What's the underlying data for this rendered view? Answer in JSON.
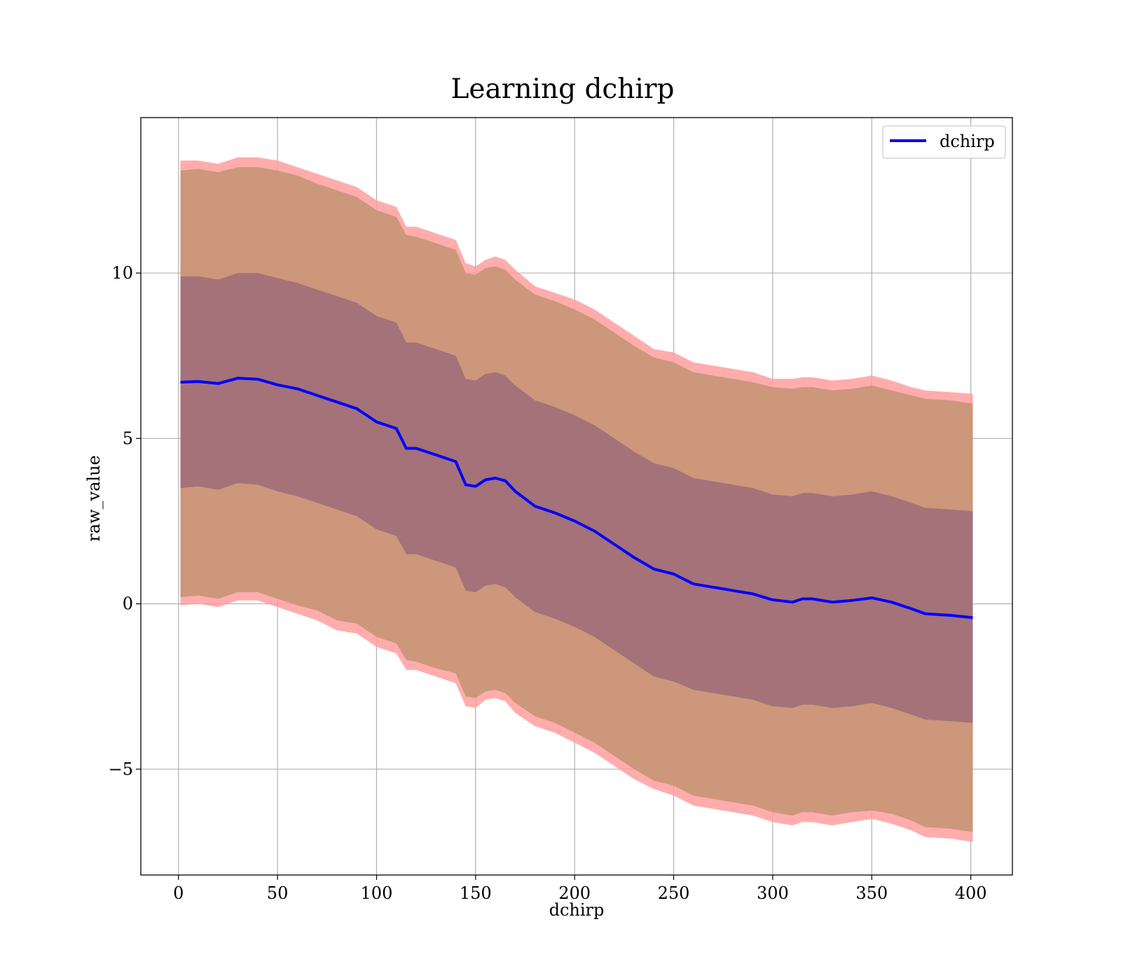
{
  "chart_data": {
    "type": "line",
    "title": "Learning dchirp",
    "xlabel": "dchirp",
    "ylabel": "raw_value",
    "xlim": [
      -19,
      421
    ],
    "ylim": [
      -8.2,
      14.7
    ],
    "grid": true,
    "legend_position": "top-right",
    "x_ticks": [
      0,
      50,
      100,
      150,
      200,
      250,
      300,
      350,
      400
    ],
    "x_tick_labels": [
      "0",
      "50",
      "100",
      "150",
      "200",
      "250",
      "300",
      "350",
      "400"
    ],
    "y_ticks": [
      -5,
      0,
      5,
      10
    ],
    "y_tick_labels": [
      "−5",
      "0",
      "5",
      "10"
    ],
    "colors": {
      "mean_line": "#0000ff",
      "outer_band": "#ff9e9e",
      "middle_band": "#c99678",
      "inner_band": "#a17078",
      "grid": "#b0b0b0"
    },
    "series": [
      {
        "name": "dchirp",
        "x": [
          1,
          10,
          20,
          30,
          40,
          50,
          60,
          70,
          80,
          90,
          100,
          110,
          115,
          120,
          130,
          140,
          145,
          150,
          155,
          160,
          165,
          170,
          180,
          190,
          200,
          210,
          220,
          230,
          240,
          250,
          260,
          270,
          280,
          290,
          300,
          310,
          315,
          320,
          330,
          340,
          350,
          360,
          370,
          377,
          390,
          401
        ],
        "y": [
          6.7,
          6.72,
          6.66,
          6.82,
          6.79,
          6.62,
          6.5,
          6.3,
          6.1,
          5.9,
          5.5,
          5.3,
          4.7,
          4.7,
          4.5,
          4.3,
          3.6,
          3.55,
          3.75,
          3.8,
          3.72,
          3.4,
          2.95,
          2.75,
          2.5,
          2.2,
          1.8,
          1.4,
          1.05,
          0.9,
          0.6,
          0.5,
          0.4,
          0.3,
          0.12,
          0.05,
          0.15,
          0.15,
          0.05,
          0.1,
          0.18,
          0.05,
          -0.15,
          -0.3,
          -0.35,
          -0.42
        ]
      }
    ],
    "bands": [
      {
        "name": "outer",
        "x": [
          1,
          10,
          20,
          30,
          40,
          50,
          60,
          70,
          80,
          90,
          100,
          110,
          115,
          120,
          130,
          140,
          145,
          150,
          155,
          160,
          165,
          170,
          180,
          190,
          200,
          210,
          220,
          230,
          240,
          250,
          260,
          270,
          280,
          290,
          300,
          310,
          315,
          320,
          330,
          340,
          350,
          360,
          370,
          377,
          390,
          401
        ],
        "upper": [
          13.4,
          13.4,
          13.3,
          13.5,
          13.5,
          13.4,
          13.2,
          13.0,
          12.8,
          12.6,
          12.2,
          12.0,
          11.4,
          11.4,
          11.2,
          11.0,
          10.3,
          10.2,
          10.4,
          10.5,
          10.4,
          10.1,
          9.6,
          9.4,
          9.2,
          8.9,
          8.5,
          8.1,
          7.7,
          7.6,
          7.3,
          7.2,
          7.1,
          7.0,
          6.8,
          6.8,
          6.85,
          6.85,
          6.75,
          6.8,
          6.9,
          6.75,
          6.55,
          6.45,
          6.4,
          6.35
        ],
        "lower": [
          -0.05,
          0.0,
          -0.1,
          0.1,
          0.1,
          -0.1,
          -0.3,
          -0.5,
          -0.8,
          -0.9,
          -1.3,
          -1.5,
          -2.0,
          -2.0,
          -2.2,
          -2.4,
          -3.1,
          -3.15,
          -2.9,
          -2.85,
          -2.95,
          -3.3,
          -3.7,
          -3.9,
          -4.2,
          -4.5,
          -4.9,
          -5.3,
          -5.6,
          -5.8,
          -6.1,
          -6.2,
          -6.3,
          -6.4,
          -6.6,
          -6.7,
          -6.6,
          -6.6,
          -6.7,
          -6.6,
          -6.5,
          -6.65,
          -6.85,
          -7.05,
          -7.1,
          -7.2
        ]
      },
      {
        "name": "middle",
        "x": [
          1,
          10,
          20,
          30,
          40,
          50,
          60,
          70,
          80,
          90,
          100,
          110,
          115,
          120,
          130,
          140,
          145,
          150,
          155,
          160,
          165,
          170,
          180,
          190,
          200,
          210,
          220,
          230,
          240,
          250,
          260,
          270,
          280,
          290,
          300,
          310,
          315,
          320,
          330,
          340,
          350,
          360,
          370,
          377,
          390,
          401
        ],
        "upper": [
          13.1,
          13.15,
          13.05,
          13.2,
          13.2,
          13.1,
          12.95,
          12.7,
          12.5,
          12.3,
          11.9,
          11.7,
          11.15,
          11.1,
          10.9,
          10.7,
          10.0,
          9.95,
          10.15,
          10.2,
          10.1,
          9.8,
          9.35,
          9.15,
          8.9,
          8.6,
          8.2,
          7.8,
          7.45,
          7.3,
          7.0,
          6.9,
          6.8,
          6.7,
          6.55,
          6.5,
          6.55,
          6.55,
          6.45,
          6.5,
          6.6,
          6.45,
          6.3,
          6.2,
          6.15,
          6.05
        ],
        "lower": [
          0.2,
          0.25,
          0.15,
          0.35,
          0.35,
          0.15,
          -0.05,
          -0.2,
          -0.5,
          -0.6,
          -1.0,
          -1.2,
          -1.7,
          -1.75,
          -1.95,
          -2.1,
          -2.8,
          -2.85,
          -2.65,
          -2.6,
          -2.7,
          -3.0,
          -3.4,
          -3.6,
          -3.9,
          -4.2,
          -4.6,
          -5.0,
          -5.35,
          -5.5,
          -5.8,
          -5.9,
          -6.0,
          -6.1,
          -6.3,
          -6.4,
          -6.3,
          -6.3,
          -6.4,
          -6.3,
          -6.25,
          -6.35,
          -6.55,
          -6.75,
          -6.8,
          -6.9
        ]
      },
      {
        "name": "inner",
        "x": [
          1,
          10,
          20,
          30,
          40,
          50,
          60,
          70,
          80,
          90,
          100,
          110,
          115,
          120,
          130,
          140,
          145,
          150,
          155,
          160,
          165,
          170,
          180,
          190,
          200,
          210,
          220,
          230,
          240,
          250,
          260,
          270,
          280,
          290,
          300,
          310,
          315,
          320,
          330,
          340,
          350,
          360,
          370,
          377,
          390,
          401
        ],
        "upper": [
          9.9,
          9.9,
          9.8,
          10.0,
          10.0,
          9.85,
          9.7,
          9.5,
          9.3,
          9.1,
          8.7,
          8.5,
          7.9,
          7.9,
          7.7,
          7.5,
          6.8,
          6.75,
          6.95,
          7.0,
          6.9,
          6.6,
          6.15,
          5.95,
          5.7,
          5.4,
          5.0,
          4.6,
          4.25,
          4.1,
          3.8,
          3.7,
          3.6,
          3.5,
          3.3,
          3.25,
          3.35,
          3.35,
          3.25,
          3.3,
          3.4,
          3.25,
          3.05,
          2.9,
          2.85,
          2.8
        ],
        "lower": [
          3.5,
          3.55,
          3.45,
          3.65,
          3.6,
          3.4,
          3.25,
          3.05,
          2.85,
          2.65,
          2.25,
          2.05,
          1.5,
          1.5,
          1.3,
          1.1,
          0.4,
          0.35,
          0.55,
          0.6,
          0.5,
          0.2,
          -0.25,
          -0.45,
          -0.7,
          -1.0,
          -1.4,
          -1.8,
          -2.2,
          -2.35,
          -2.6,
          -2.7,
          -2.8,
          -2.9,
          -3.1,
          -3.15,
          -3.05,
          -3.05,
          -3.15,
          -3.1,
          -3.0,
          -3.15,
          -3.35,
          -3.5,
          -3.55,
          -3.6
        ]
      }
    ]
  }
}
